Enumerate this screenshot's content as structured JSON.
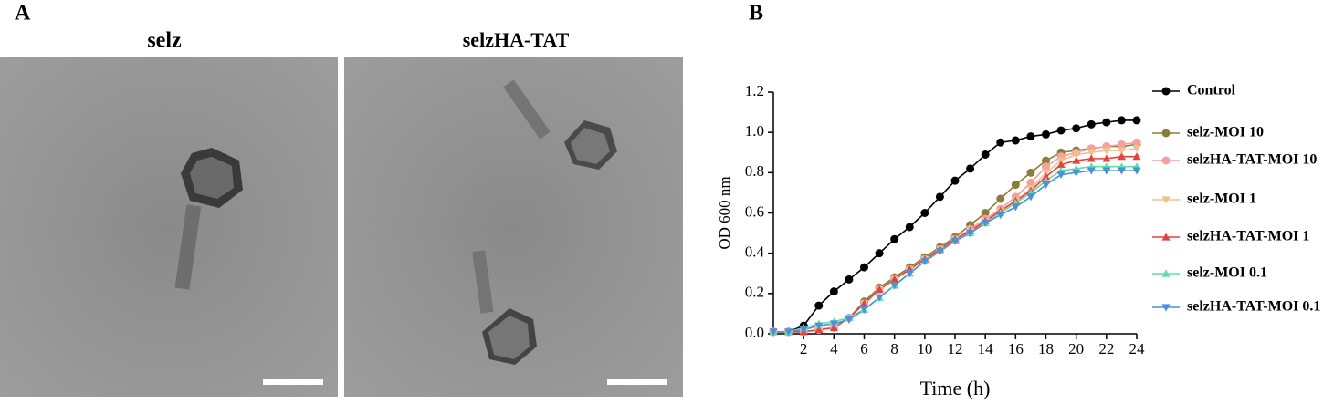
{
  "panels": {
    "a_label": "A",
    "b_label": "B",
    "image_titles": [
      "selz",
      "selzHA-TAT"
    ]
  },
  "chart_data": {
    "type": "line",
    "xlabel": "Time (h)",
    "ylabel": "OD 600 nm",
    "x": [
      0,
      1,
      2,
      3,
      4,
      5,
      6,
      7,
      8,
      9,
      10,
      11,
      12,
      13,
      14,
      15,
      16,
      17,
      18,
      19,
      20,
      21,
      22,
      23,
      24
    ],
    "xlim": [
      0,
      24
    ],
    "xticks": [
      2,
      4,
      6,
      8,
      10,
      12,
      14,
      16,
      18,
      20,
      22,
      24
    ],
    "ylim": [
      0,
      1.2
    ],
    "yticks": [
      {
        "value": 0,
        "label": "0.0"
      },
      0.2,
      0.4,
      0.6,
      0.8,
      {
        "value": 1,
        "label": "1.0"
      },
      1.2
    ],
    "series": [
      {
        "name": "Control",
        "color": "#000000",
        "marker": "circle",
        "values": [
          0.01,
          0.01,
          0.04,
          0.14,
          0.21,
          0.27,
          0.33,
          0.4,
          0.47,
          0.53,
          0.6,
          0.68,
          0.76,
          0.82,
          0.89,
          0.95,
          0.96,
          0.98,
          0.99,
          1.01,
          1.02,
          1.04,
          1.05,
          1.06,
          1.06
        ]
      },
      {
        "name": "selz-MOI 10",
        "color": "#8b7d3a",
        "marker": "circle",
        "values": [
          0.01,
          0.01,
          0.01,
          0.02,
          0.03,
          0.08,
          0.16,
          0.23,
          0.28,
          0.33,
          0.38,
          0.43,
          0.48,
          0.54,
          0.6,
          0.67,
          0.74,
          0.8,
          0.86,
          0.9,
          0.91,
          0.92,
          0.93,
          0.93,
          0.94
        ]
      },
      {
        "name": "selzHA-TAT-MOI 10",
        "color": "#f4a0a0",
        "marker": "circle",
        "values": [
          0.01,
          0.01,
          0.01,
          0.02,
          0.03,
          0.08,
          0.15,
          0.22,
          0.27,
          0.32,
          0.37,
          0.42,
          0.47,
          0.52,
          0.57,
          0.62,
          0.68,
          0.75,
          0.83,
          0.88,
          0.9,
          0.92,
          0.93,
          0.94,
          0.95
        ]
      },
      {
        "name": "selz-MOI 1",
        "color": "#f2c08a",
        "marker": "down",
        "values": [
          0.01,
          0.01,
          0.01,
          0.02,
          0.03,
          0.08,
          0.15,
          0.22,
          0.27,
          0.32,
          0.37,
          0.42,
          0.47,
          0.51,
          0.56,
          0.61,
          0.66,
          0.72,
          0.8,
          0.86,
          0.89,
          0.9,
          0.91,
          0.91,
          0.92
        ]
      },
      {
        "name": "selzHA-TAT-MOI 1",
        "color": "#e8413c",
        "marker": "up",
        "values": [
          0.01,
          0.01,
          0.01,
          0.02,
          0.03,
          0.08,
          0.15,
          0.22,
          0.27,
          0.32,
          0.37,
          0.42,
          0.47,
          0.51,
          0.56,
          0.61,
          0.66,
          0.71,
          0.78,
          0.84,
          0.86,
          0.87,
          0.87,
          0.88,
          0.88
        ]
      },
      {
        "name": "selz-MOI 0.1",
        "color": "#5de0a5",
        "marker": "up",
        "values": [
          0.01,
          0.01,
          0.03,
          0.05,
          0.06,
          0.08,
          0.12,
          0.18,
          0.24,
          0.3,
          0.36,
          0.41,
          0.46,
          0.5,
          0.55,
          0.6,
          0.65,
          0.7,
          0.76,
          0.81,
          0.82,
          0.83,
          0.83,
          0.83,
          0.83
        ]
      },
      {
        "name": "selzHA-TAT-MOI 0.1",
        "color": "#4a90e2",
        "marker": "down",
        "values": [
          0.01,
          0.01,
          0.02,
          0.04,
          0.05,
          0.07,
          0.12,
          0.18,
          0.24,
          0.3,
          0.36,
          0.41,
          0.46,
          0.5,
          0.55,
          0.59,
          0.63,
          0.68,
          0.74,
          0.79,
          0.8,
          0.81,
          0.81,
          0.81,
          0.81
        ]
      }
    ]
  }
}
